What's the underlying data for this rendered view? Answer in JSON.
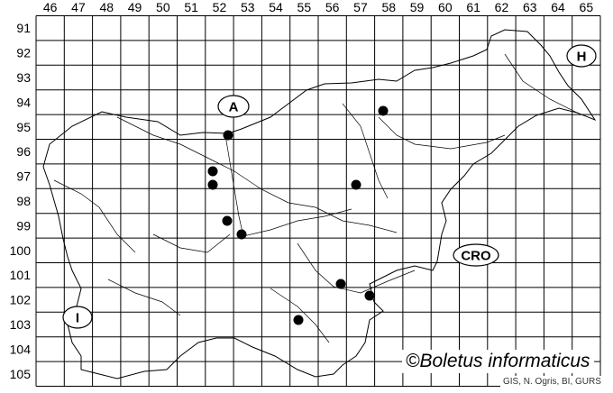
{
  "map": {
    "columns": [
      "46",
      "47",
      "48",
      "49",
      "50",
      "51",
      "52",
      "53",
      "54",
      "55",
      "56",
      "57",
      "58",
      "59",
      "60",
      "61",
      "62",
      "63",
      "64",
      "65"
    ],
    "rows": [
      "91",
      "92",
      "93",
      "94",
      "95",
      "96",
      "97",
      "98",
      "99",
      "100",
      "101",
      "102",
      "103",
      "104",
      "105"
    ],
    "country_labels": [
      {
        "id": "A",
        "text": "A"
      },
      {
        "id": "H",
        "text": "H"
      },
      {
        "id": "CRO",
        "text": "CRO"
      },
      {
        "id": "I",
        "text": "I"
      }
    ],
    "occurrence_count": 10,
    "marker_color": "#000000",
    "copyright": "©Boletus informaticus",
    "credits": "GIS, N. Ogris, BI, GURS"
  }
}
